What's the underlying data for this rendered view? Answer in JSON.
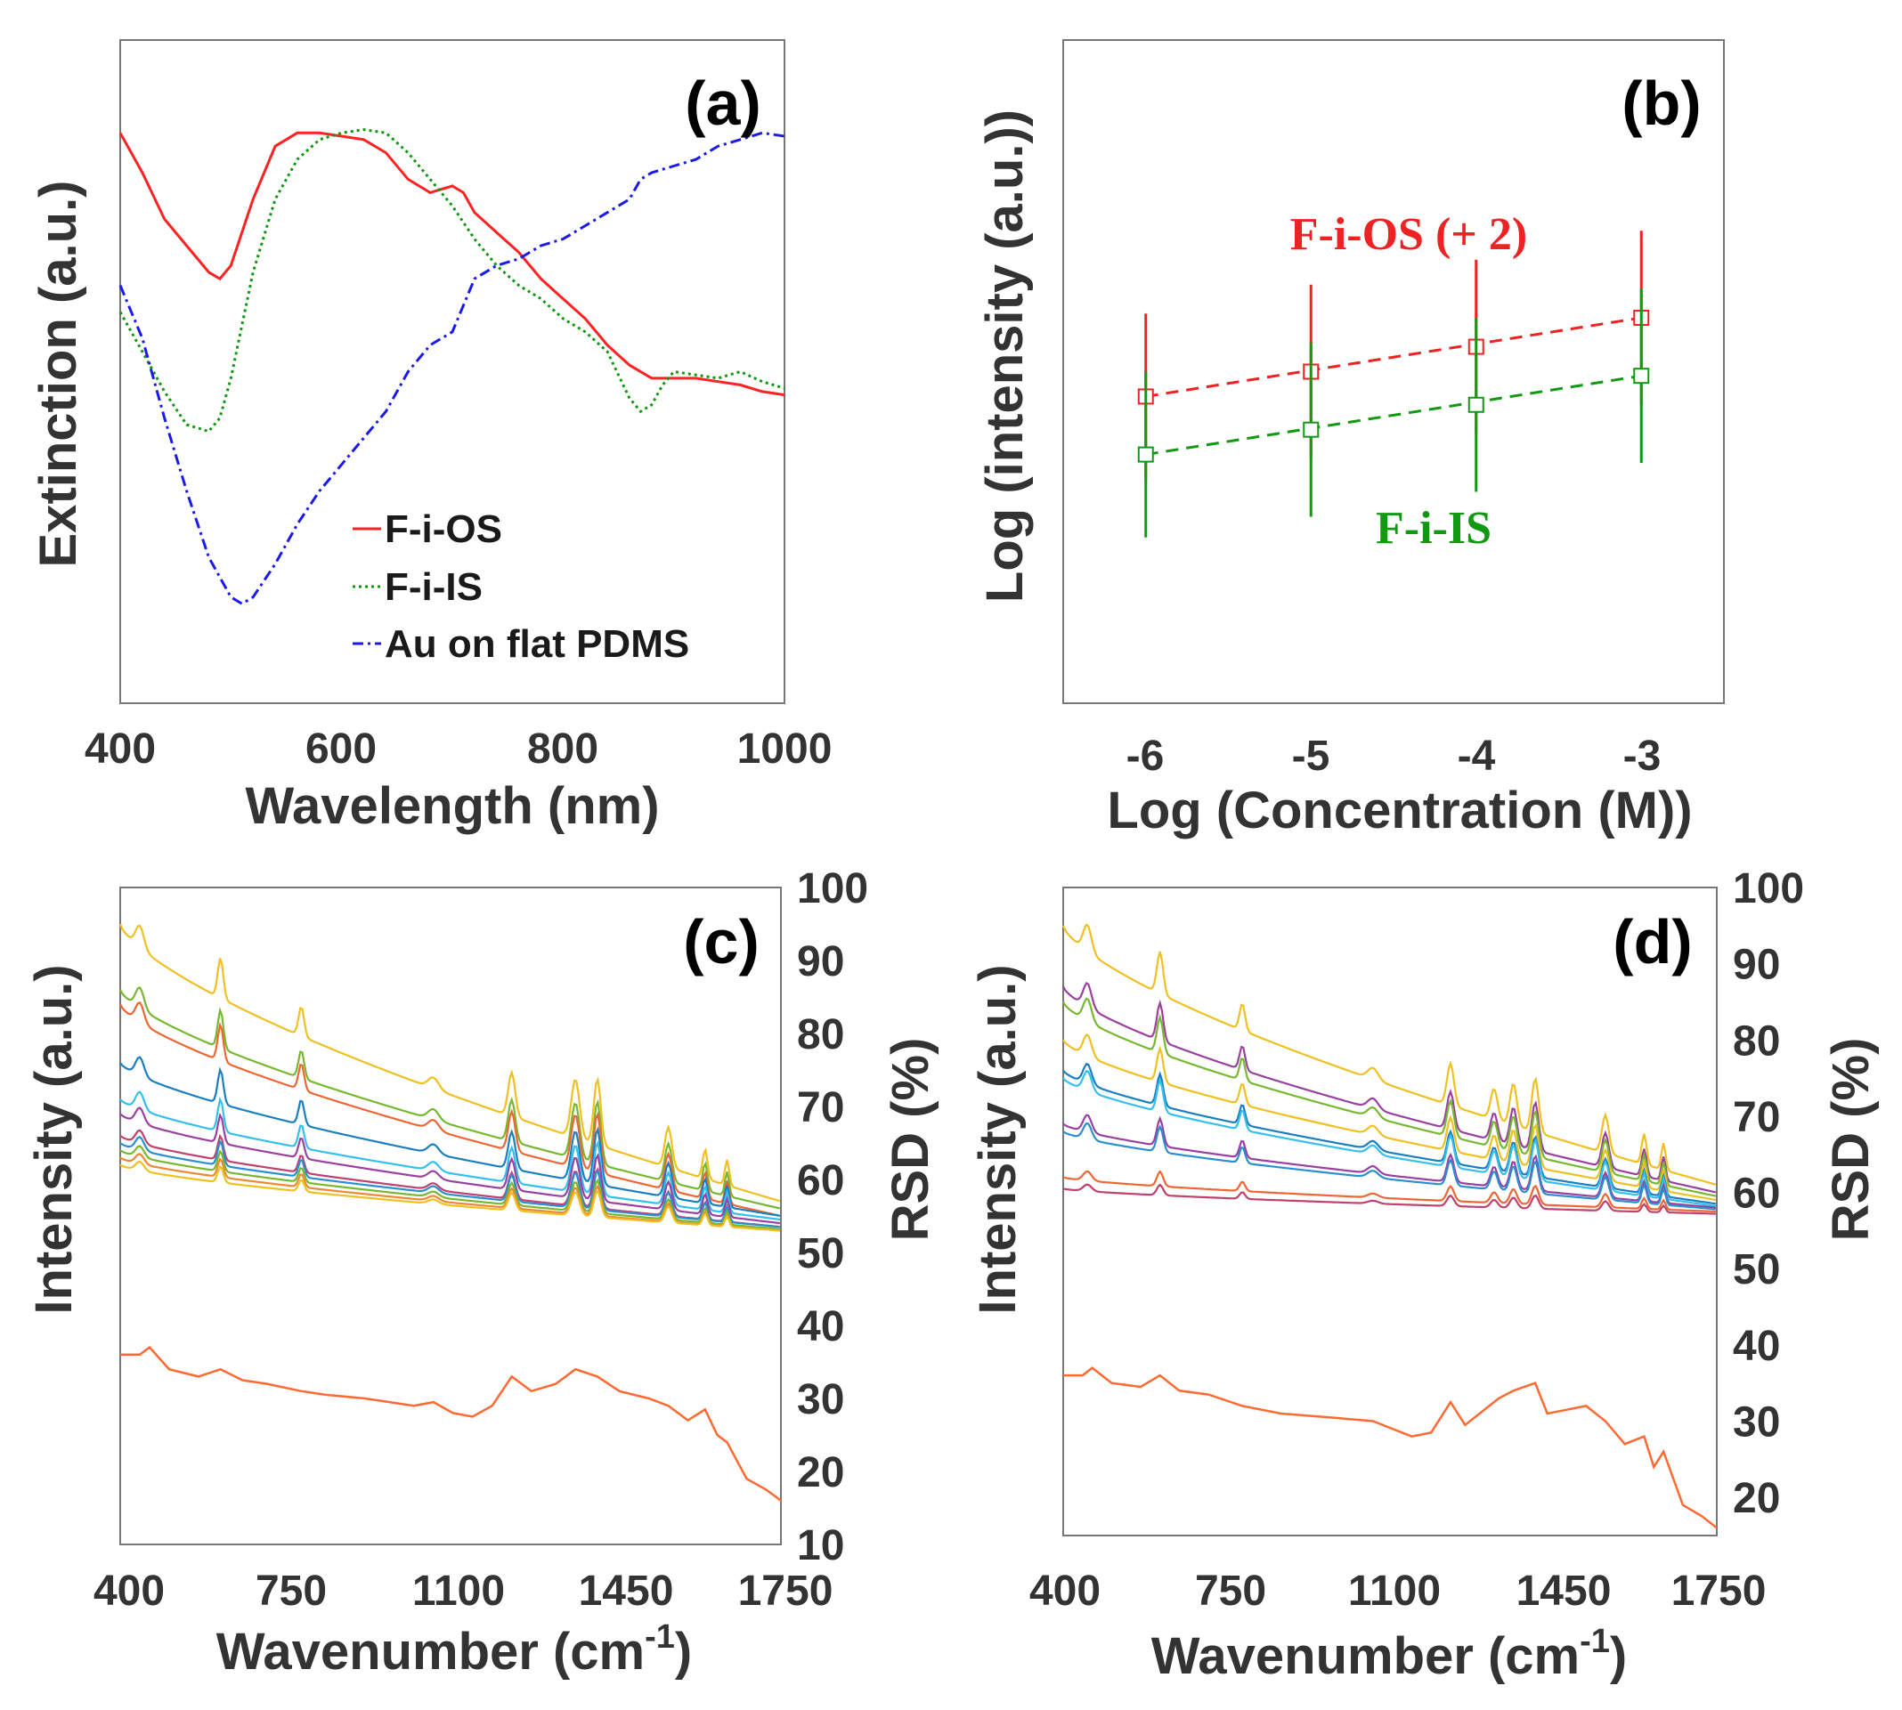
{
  "chart_data": [
    {
      "type": "line",
      "panel_label": "(a)",
      "xlabel": "Wavelength (nm)",
      "ylabel": "Extinction (a.u.)",
      "xlim": [
        400,
        1000
      ],
      "ylim": [
        0,
        1
      ],
      "x_ticks": [
        "400",
        "600",
        "800",
        "1000"
      ],
      "legend_position": "bottom-center",
      "series": [
        {
          "name": "F-i-OS",
          "color": "#ff2222",
          "style": "solid",
          "x": [
            400,
            420,
            440,
            460,
            480,
            490,
            500,
            520,
            540,
            560,
            580,
            600,
            620,
            640,
            660,
            680,
            700,
            710,
            720,
            740,
            760,
            780,
            800,
            820,
            840,
            860,
            880,
            900,
            920,
            940,
            960,
            980,
            1000
          ],
          "y": [
            0.86,
            0.8,
            0.73,
            0.69,
            0.65,
            0.64,
            0.66,
            0.76,
            0.84,
            0.86,
            0.86,
            0.855,
            0.85,
            0.83,
            0.79,
            0.77,
            0.78,
            0.77,
            0.74,
            0.71,
            0.68,
            0.64,
            0.61,
            0.58,
            0.54,
            0.51,
            0.49,
            0.49,
            0.49,
            0.485,
            0.48,
            0.47,
            0.465
          ]
        },
        {
          "name": "F-i-IS",
          "color": "#109910",
          "style": "dotted",
          "x": [
            400,
            420,
            440,
            460,
            480,
            490,
            500,
            520,
            540,
            560,
            580,
            600,
            620,
            640,
            660,
            680,
            700,
            720,
            740,
            760,
            780,
            800,
            820,
            840,
            860,
            870,
            880,
            890,
            900,
            920,
            940,
            960,
            980,
            1000
          ],
          "y": [
            0.59,
            0.53,
            0.47,
            0.42,
            0.41,
            0.43,
            0.49,
            0.65,
            0.76,
            0.82,
            0.85,
            0.86,
            0.865,
            0.86,
            0.83,
            0.79,
            0.75,
            0.7,
            0.66,
            0.63,
            0.61,
            0.58,
            0.56,
            0.53,
            0.46,
            0.44,
            0.45,
            0.48,
            0.5,
            0.495,
            0.49,
            0.5,
            0.485,
            0.475
          ]
        },
        {
          "name": "Au on flat PDMS",
          "color": "#1a1aee",
          "style": "dashdot",
          "x": [
            400,
            420,
            440,
            460,
            480,
            500,
            510,
            520,
            540,
            560,
            580,
            600,
            620,
            640,
            660,
            680,
            700,
            720,
            740,
            760,
            780,
            800,
            820,
            840,
            860,
            870,
            880,
            900,
            920,
            940,
            960,
            980,
            1000
          ],
          "y": [
            0.63,
            0.55,
            0.43,
            0.32,
            0.22,
            0.16,
            0.15,
            0.16,
            0.21,
            0.27,
            0.32,
            0.36,
            0.4,
            0.44,
            0.5,
            0.54,
            0.56,
            0.64,
            0.66,
            0.67,
            0.69,
            0.7,
            0.72,
            0.74,
            0.76,
            0.79,
            0.8,
            0.81,
            0.82,
            0.84,
            0.85,
            0.86,
            0.855
          ]
        }
      ]
    },
    {
      "type": "scatter",
      "panel_label": "(b)",
      "xlabel": "Log (Concentration (M))",
      "ylabel": "Log (intensity (a.u.))",
      "xlim": [
        -6.5,
        -2.5
      ],
      "ylim": [
        1.5,
        9.5
      ],
      "x_ticks": [
        "-6",
        "-5",
        "-4",
        "-3"
      ],
      "annotations": [
        "F-i-OS (+ 2)",
        "F-i-IS"
      ],
      "series": [
        {
          "name": "F-i-OS (+ 2)",
          "color": "#ee2222",
          "fit": "dashed",
          "x": [
            -6,
            -5,
            -4,
            -3
          ],
          "y": [
            5.2,
            5.5,
            5.8,
            6.15
          ],
          "err": [
            1.0,
            1.05,
            1.05,
            1.05
          ]
        },
        {
          "name": "F-i-IS",
          "color": "#119911",
          "fit": "dashed",
          "x": [
            -6,
            -5,
            -4,
            -3
          ],
          "y": [
            4.5,
            4.8,
            5.1,
            5.45
          ],
          "err": [
            1.0,
            1.05,
            1.05,
            1.05
          ]
        }
      ]
    },
    {
      "type": "line",
      "panel_label": "(c)",
      "xlabel": "Wavenumber (cm-1)",
      "xlabel_main": "Wavenumber (cm",
      "xlabel_sup": "-1",
      "xlabel_end": ")",
      "ylabel": "Intensity (a.u.)",
      "y2label": "RSD (%)",
      "xlim": [
        400,
        1750
      ],
      "y2lim": [
        10,
        100
      ],
      "x_ticks": [
        "400",
        "750",
        "1100",
        "1450",
        "1750"
      ],
      "y2_ticks": [
        "10",
        "20",
        "30",
        "40",
        "50",
        "60",
        "70",
        "80",
        "90",
        "100"
      ],
      "peaks": [
        [
          440,
          3.0,
          12
        ],
        [
          605,
          5.5,
          8
        ],
        [
          770,
          4.0,
          8
        ],
        [
          1040,
          1.5,
          15
        ],
        [
          1200,
          6.0,
          10
        ],
        [
          1330,
          8.0,
          12
        ],
        [
          1375,
          9.0,
          10
        ],
        [
          1520,
          5.5,
          10
        ],
        [
          1595,
          4.0,
          7
        ],
        [
          1640,
          3.5,
          6
        ]
      ],
      "spectra": [
        {
          "color": "#f0c020",
          "start": 95,
          "end": 57,
          "scale": 1.0
        },
        {
          "color": "#77b830",
          "start": 86,
          "end": 56,
          "scale": 0.95
        },
        {
          "color": "#ee6633",
          "start": 84,
          "end": 55,
          "scale": 0.9
        },
        {
          "color": "#1a7fc0",
          "start": 76,
          "end": 55,
          "scale": 0.85
        },
        {
          "color": "#33c0ee",
          "start": 71,
          "end": 54.5,
          "scale": 0.8
        },
        {
          "color": "#9a40a0",
          "start": 69,
          "end": 54,
          "scale": 0.7
        },
        {
          "color": "#c04070",
          "start": 66,
          "end": 53.5,
          "scale": 0.6
        },
        {
          "color": "#2a8fd0",
          "start": 65,
          "end": 53.5,
          "scale": 0.6
        },
        {
          "color": "#77b830",
          "start": 64,
          "end": 53.2,
          "scale": 0.5
        },
        {
          "color": "#ee8833",
          "start": 63,
          "end": 53,
          "scale": 0.45
        },
        {
          "color": "#f0c020",
          "start": 62,
          "end": 53,
          "scale": 0.4
        }
      ],
      "rsd": {
        "color": "#ff6a33",
        "x": [
          400,
          440,
          460,
          500,
          560,
          605,
          650,
          700,
          770,
          820,
          900,
          1000,
          1040,
          1080,
          1120,
          1160,
          1200,
          1240,
          1290,
          1330,
          1375,
          1420,
          1480,
          1520,
          1560,
          1595,
          1620,
          1640,
          1680,
          1720,
          1750
        ],
        "y": [
          36,
          36,
          37,
          34,
          33,
          34,
          32.5,
          32,
          31,
          30.5,
          30,
          29,
          29.5,
          28,
          27.5,
          29,
          33,
          31,
          32,
          34,
          33,
          31,
          30,
          29,
          27,
          28.5,
          25,
          24,
          19,
          17.5,
          16
        ]
      }
    },
    {
      "type": "line",
      "panel_label": "(d)",
      "xlabel": "Wavenumber (cm-1)",
      "xlabel_main": "Wavenumber (cm",
      "xlabel_sup": "-1",
      "xlabel_end": ")",
      "ylabel": "Intensity (a.u.)",
      "y2label": "RSD (%)",
      "xlim": [
        400,
        1750
      ],
      "y2lim": [
        15,
        100
      ],
      "x_ticks": [
        "400",
        "750",
        "1100",
        "1450",
        "1750"
      ],
      "y2_ticks": [
        "20",
        "30",
        "40",
        "50",
        "60",
        "70",
        "80",
        "90",
        "100"
      ],
      "peaks": [
        [
          450,
          3.5,
          12
        ],
        [
          600,
          5.5,
          9
        ],
        [
          770,
          3.5,
          8
        ],
        [
          1040,
          1.5,
          15
        ],
        [
          1200,
          5.5,
          10
        ],
        [
          1290,
          4.0,
          10
        ],
        [
          1330,
          5.5,
          10
        ],
        [
          1375,
          7.0,
          10
        ],
        [
          1520,
          5.0,
          10
        ],
        [
          1600,
          4.0,
          7
        ],
        [
          1640,
          3.5,
          6
        ]
      ],
      "spectra": [
        {
          "color": "#f0c020",
          "start": 95,
          "end": 61,
          "scale": 1.0
        },
        {
          "color": "#9a40a0",
          "start": 87,
          "end": 60,
          "scale": 0.9
        },
        {
          "color": "#77b830",
          "start": 85,
          "end": 59.5,
          "scale": 0.85
        },
        {
          "color": "#f0c020",
          "start": 80,
          "end": 59,
          "scale": 0.8
        },
        {
          "color": "#1a7fc0",
          "start": 76,
          "end": 58.5,
          "scale": 0.75
        },
        {
          "color": "#33c0ee",
          "start": 75,
          "end": 58.2,
          "scale": 0.75
        },
        {
          "color": "#9a40a0",
          "start": 69,
          "end": 58,
          "scale": 0.65
        },
        {
          "color": "#2a8fd0",
          "start": 68,
          "end": 57.8,
          "scale": 0.6
        },
        {
          "color": "#ee6633",
          "start": 62,
          "end": 57.5,
          "scale": 0.35
        },
        {
          "color": "#c04070",
          "start": 60.5,
          "end": 57.2,
          "scale": 0.25
        }
      ],
      "rsd": {
        "color": "#ff6a33",
        "x": [
          400,
          440,
          460,
          500,
          560,
          600,
          640,
          700,
          770,
          850,
          950,
          1040,
          1080,
          1120,
          1160,
          1200,
          1230,
          1260,
          1300,
          1330,
          1375,
          1400,
          1440,
          1480,
          1520,
          1560,
          1600,
          1620,
          1640,
          1680,
          1720,
          1750
        ],
        "y": [
          36,
          36,
          37,
          35,
          34.5,
          36,
          34,
          33.5,
          32,
          31,
          30.5,
          30,
          29,
          28,
          28.5,
          32.5,
          29.5,
          31,
          33,
          34,
          35,
          31,
          31.5,
          32,
          30,
          27,
          28,
          24,
          26,
          19,
          17.5,
          16
        ]
      }
    }
  ]
}
